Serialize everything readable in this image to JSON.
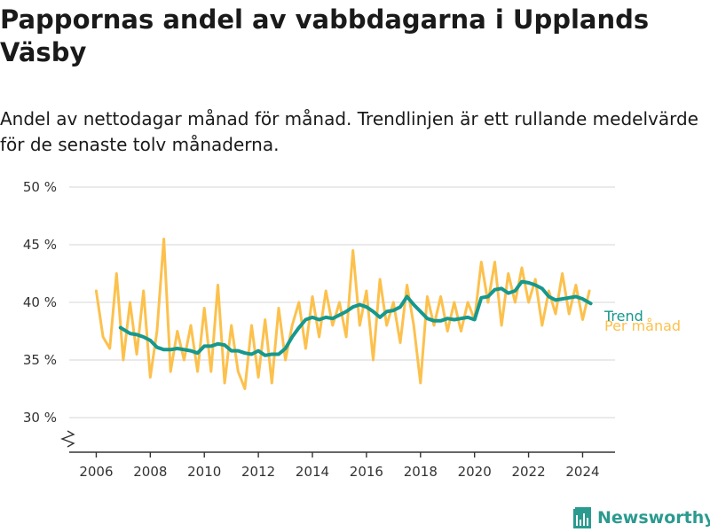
{
  "title": "Pappornas andel av vabbdagarna i Upplands Väsby",
  "subtitle": "Andel av nettodagar månad för månad. Trendlinjen är ett rullande medelvärde för de senaste tolv månaderna.",
  "brand": {
    "name": "Newsworthy",
    "icon": "newsworthy-logo-icon",
    "color": "#2b9a8f"
  },
  "chart_data": {
    "type": "line",
    "ylim": [
      27,
      50
    ],
    "xlim": [
      2005.0,
      2025.2
    ],
    "y_ticks": [
      30,
      35,
      40,
      45,
      50
    ],
    "y_tick_labels": [
      "30 %",
      "35 %",
      "40 %",
      "45 %",
      "50 %"
    ],
    "y_axis_break": true,
    "x_ticks": [
      2006,
      2008,
      2010,
      2012,
      2014,
      2016,
      2018,
      2020,
      2022,
      2024
    ],
    "x_tick_labels": [
      "2006",
      "2008",
      "2010",
      "2012",
      "2014",
      "2016",
      "2018",
      "2020",
      "2022",
      "2024"
    ],
    "grid": true,
    "legend": "direct-labels-right",
    "series": [
      {
        "name": "Per månad",
        "color": "#fcc14d",
        "x": [
          2006.0,
          2006.25,
          2006.5,
          2006.75,
          2007.0,
          2007.25,
          2007.5,
          2007.75,
          2008.0,
          2008.25,
          2008.5,
          2008.75,
          2009.0,
          2009.25,
          2009.5,
          2009.75,
          2010.0,
          2010.25,
          2010.5,
          2010.75,
          2011.0,
          2011.25,
          2011.5,
          2011.75,
          2012.0,
          2012.25,
          2012.5,
          2012.75,
          2013.0,
          2013.25,
          2013.5,
          2013.75,
          2014.0,
          2014.25,
          2014.5,
          2014.75,
          2015.0,
          2015.25,
          2015.5,
          2015.75,
          2016.0,
          2016.25,
          2016.5,
          2016.75,
          2017.0,
          2017.25,
          2017.5,
          2017.75,
          2018.0,
          2018.25,
          2018.5,
          2018.75,
          2019.0,
          2019.25,
          2019.5,
          2019.75,
          2020.0,
          2020.25,
          2020.5,
          2020.75,
          2021.0,
          2021.25,
          2021.5,
          2021.75,
          2022.0,
          2022.25,
          2022.5,
          2022.75,
          2023.0,
          2023.25,
          2023.5,
          2023.75,
          2024.0,
          2024.25
        ],
        "values": [
          41.0,
          37.0,
          36.0,
          42.5,
          35.0,
          40.0,
          35.5,
          41.0,
          33.5,
          37.5,
          45.5,
          34.0,
          37.5,
          35.0,
          38.0,
          34.0,
          39.5,
          34.0,
          41.5,
          33.0,
          38.0,
          34.0,
          32.5,
          38.0,
          33.5,
          38.5,
          33.0,
          39.5,
          35.0,
          38.0,
          40.0,
          36.0,
          40.5,
          37.0,
          41.0,
          38.0,
          40.0,
          37.0,
          44.5,
          38.0,
          41.0,
          35.0,
          42.0,
          38.0,
          40.0,
          36.5,
          41.5,
          38.0,
          33.0,
          40.5,
          38.0,
          40.5,
          37.5,
          40.0,
          37.5,
          40.0,
          38.5,
          43.5,
          40.0,
          43.5,
          38.0,
          42.5,
          40.0,
          43.0,
          40.0,
          42.0,
          38.0,
          41.0,
          39.0,
          42.5,
          39.0,
          41.5,
          38.5,
          41.0
        ]
      },
      {
        "name": "Trend",
        "color": "#16988d",
        "x": [
          2006.9,
          2007.25,
          2007.5,
          2007.75,
          2008.0,
          2008.25,
          2008.5,
          2008.75,
          2009.0,
          2009.25,
          2009.5,
          2009.75,
          2010.0,
          2010.25,
          2010.5,
          2010.75,
          2011.0,
          2011.25,
          2011.5,
          2011.75,
          2012.0,
          2012.25,
          2012.5,
          2012.75,
          2013.0,
          2013.25,
          2013.5,
          2013.75,
          2014.0,
          2014.25,
          2014.5,
          2014.75,
          2015.0,
          2015.25,
          2015.5,
          2015.75,
          2016.0,
          2016.25,
          2016.5,
          2016.75,
          2017.0,
          2017.25,
          2017.5,
          2017.75,
          2018.0,
          2018.25,
          2018.5,
          2018.75,
          2019.0,
          2019.25,
          2019.5,
          2019.75,
          2020.0,
          2020.25,
          2020.5,
          2020.75,
          2021.0,
          2021.25,
          2021.5,
          2021.75,
          2022.0,
          2022.25,
          2022.5,
          2022.75,
          2023.0,
          2023.25,
          2023.5,
          2023.75,
          2024.0,
          2024.3
        ],
        "values": [
          37.8,
          37.3,
          37.2,
          37.0,
          36.7,
          36.1,
          35.9,
          35.9,
          36.0,
          35.9,
          35.8,
          35.6,
          36.2,
          36.2,
          36.4,
          36.3,
          35.8,
          35.8,
          35.6,
          35.5,
          35.8,
          35.4,
          35.5,
          35.5,
          36.0,
          37.0,
          37.8,
          38.5,
          38.7,
          38.5,
          38.7,
          38.6,
          38.9,
          39.2,
          39.6,
          39.8,
          39.6,
          39.2,
          38.7,
          39.2,
          39.3,
          39.6,
          40.5,
          39.8,
          39.2,
          38.6,
          38.4,
          38.4,
          38.6,
          38.5,
          38.6,
          38.7,
          38.5,
          40.4,
          40.5,
          41.1,
          41.2,
          40.8,
          41.0,
          41.8,
          41.7,
          41.5,
          41.2,
          40.5,
          40.2,
          40.3,
          40.4,
          40.5,
          40.3,
          39.9
        ]
      }
    ]
  }
}
